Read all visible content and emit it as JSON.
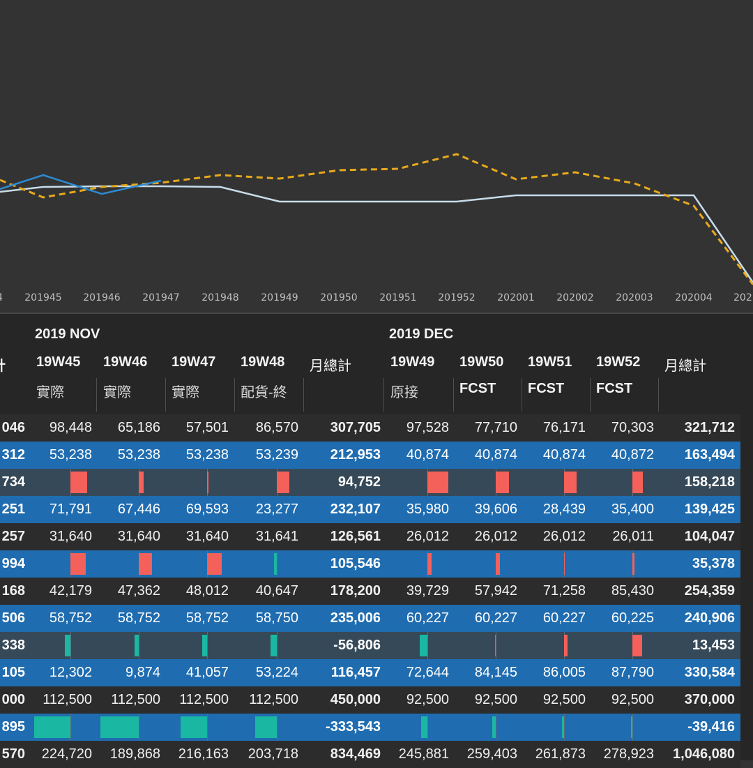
{
  "chart": {
    "x_ticks": [
      "4",
      "201945",
      "201946",
      "201947",
      "201948",
      "201949",
      "201950",
      "201951",
      "201952",
      "202001",
      "202002",
      "202003",
      "202004",
      "202"
    ],
    "series": [
      {
        "style": "solid",
        "color": "#c8dcea",
        "points": [
          [
            0,
            275
          ],
          [
            62,
            268
          ],
          [
            146,
            267
          ],
          [
            231,
            267
          ],
          [
            316,
            268
          ],
          [
            401,
            289
          ],
          [
            486,
            289
          ],
          [
            571,
            289
          ],
          [
            655,
            289
          ],
          [
            740,
            280
          ],
          [
            825,
            280
          ],
          [
            910,
            280
          ],
          [
            995,
            280
          ],
          [
            1080,
            405
          ]
        ]
      },
      {
        "style": "dashed",
        "color": "#e8a91c",
        "points": [
          [
            0,
            258
          ],
          [
            62,
            283
          ],
          [
            146,
            268
          ],
          [
            231,
            262
          ],
          [
            316,
            251
          ],
          [
            401,
            256
          ],
          [
            486,
            244
          ],
          [
            571,
            242
          ],
          [
            655,
            221
          ],
          [
            740,
            257
          ],
          [
            825,
            247
          ],
          [
            910,
            263
          ],
          [
            995,
            295
          ],
          [
            1080,
            408
          ]
        ]
      },
      {
        "style": "solid",
        "color": "#2d8ad1",
        "points": [
          [
            0,
            271
          ],
          [
            62,
            251
          ],
          [
            146,
            278
          ],
          [
            231,
            259
          ]
        ]
      }
    ]
  },
  "matrix": {
    "months": [
      "2019 NOV",
      "2019 DEC"
    ],
    "left_header_fragment": "計",
    "weeks": [
      "19W45",
      "19W46",
      "19W47",
      "19W48",
      "月總計",
      "19W49",
      "19W50",
      "19W51",
      "19W52",
      "月總計"
    ],
    "subs": [
      "實際",
      "實際",
      "實際",
      "配貨-終",
      "原接",
      "FCST",
      "FCST",
      "FCST"
    ],
    "rows": [
      {
        "style": "white",
        "type": "num",
        "left": "046",
        "values": [
          "98,448",
          "65,186",
          "57,501",
          "86,570",
          "307,705",
          "97,528",
          "77,710",
          "76,171",
          "70,303",
          "321,712"
        ]
      },
      {
        "style": "blue",
        "type": "num",
        "left": "312",
        "values": [
          "53,238",
          "53,238",
          "53,238",
          "53,239",
          "212,953",
          "40,874",
          "40,874",
          "40,874",
          "40,872",
          "163,494"
        ]
      },
      {
        "style": "dark",
        "type": "bar",
        "left": "734",
        "bars": [
          {
            "w": 24,
            "s": "neg"
          },
          {
            "w": 7,
            "s": "neg"
          },
          {
            "w": 2,
            "s": "neg"
          },
          {
            "w": 18,
            "s": "neg"
          },
          null,
          {
            "w": 30,
            "s": "neg"
          },
          {
            "w": 19,
            "s": "neg"
          },
          {
            "w": 18,
            "s": "neg"
          },
          {
            "w": 15,
            "s": "neg"
          },
          null
        ],
        "totals": [
          "94,752",
          "158,218"
        ]
      },
      {
        "style": "blue",
        "type": "num",
        "left": "251",
        "values": [
          "71,791",
          "67,446",
          "69,593",
          "23,277",
          "232,107",
          "35,980",
          "39,606",
          "28,439",
          "35,400",
          "139,425"
        ]
      },
      {
        "style": "white",
        "type": "num",
        "left": "257",
        "values": [
          "31,640",
          "31,640",
          "31,640",
          "31,641",
          "126,561",
          "26,012",
          "26,012",
          "26,012",
          "26,011",
          "104,047"
        ]
      },
      {
        "style": "blue",
        "type": "bar",
        "left": "994",
        "bars": [
          {
            "w": 22,
            "s": "neg"
          },
          {
            "w": 19,
            "s": "neg"
          },
          {
            "w": 21,
            "s": "neg"
          },
          {
            "w": 4,
            "s": "pos"
          },
          null,
          {
            "w": 6,
            "s": "neg"
          },
          {
            "w": 6,
            "s": "neg"
          },
          {
            "w": 1,
            "s": "neg"
          },
          {
            "w": 3,
            "s": "neg"
          },
          null
        ],
        "totals": [
          "105,546",
          "35,378"
        ]
      },
      {
        "style": "white",
        "type": "num",
        "left": "168",
        "values": [
          "42,179",
          "47,362",
          "48,012",
          "40,647",
          "178,200",
          "39,729",
          "57,942",
          "71,258",
          "85,430",
          "254,359"
        ]
      },
      {
        "style": "blue",
        "type": "num",
        "left": "506",
        "values": [
          "58,752",
          "58,752",
          "58,752",
          "58,750",
          "235,006",
          "60,227",
          "60,227",
          "60,227",
          "60,225",
          "240,906"
        ]
      },
      {
        "style": "dark",
        "type": "bar",
        "left": "338",
        "bars": [
          {
            "w": 8,
            "s": "pos"
          },
          {
            "w": 6,
            "s": "pos"
          },
          {
            "w": 7,
            "s": "pos"
          },
          {
            "w": 9,
            "s": "pos"
          },
          null,
          {
            "w": 11,
            "s": "pos"
          },
          {
            "w": 1,
            "s": "pos"
          },
          {
            "w": 5,
            "s": "neg"
          },
          {
            "w": 14,
            "s": "neg"
          },
          null
        ],
        "totals": [
          "-56,806",
          "13,453"
        ]
      },
      {
        "style": "blue",
        "type": "num",
        "left": "105",
        "values": [
          "12,302",
          "9,874",
          "41,057",
          "53,224",
          "116,457",
          "72,644",
          "84,145",
          "86,005",
          "87,790",
          "330,584"
        ]
      },
      {
        "style": "white",
        "type": "num",
        "left": "000",
        "values": [
          "112,500",
          "112,500",
          "112,500",
          "112,500",
          "450,000",
          "92,500",
          "92,500",
          "92,500",
          "92,500",
          "370,000"
        ]
      },
      {
        "style": "blue",
        "type": "bar",
        "left": "895",
        "bars": [
          {
            "w": 52,
            "s": "pos"
          },
          {
            "w": 55,
            "s": "pos"
          },
          {
            "w": 38,
            "s": "pos"
          },
          {
            "w": 31,
            "s": "pos"
          },
          null,
          {
            "w": 9,
            "s": "pos"
          },
          {
            "w": 5,
            "s": "pos"
          },
          {
            "w": 3,
            "s": "pos"
          },
          {
            "w": 2,
            "s": "pos"
          },
          null
        ],
        "totals": [
          "-333,543",
          "-39,416"
        ]
      },
      {
        "style": "white",
        "type": "num",
        "left": "570",
        "values": [
          "224,720",
          "189,868",
          "216,163",
          "203,718",
          "834,469",
          "245,881",
          "259,403",
          "261,873",
          "278,923",
          "1,046,080"
        ]
      }
    ]
  }
}
